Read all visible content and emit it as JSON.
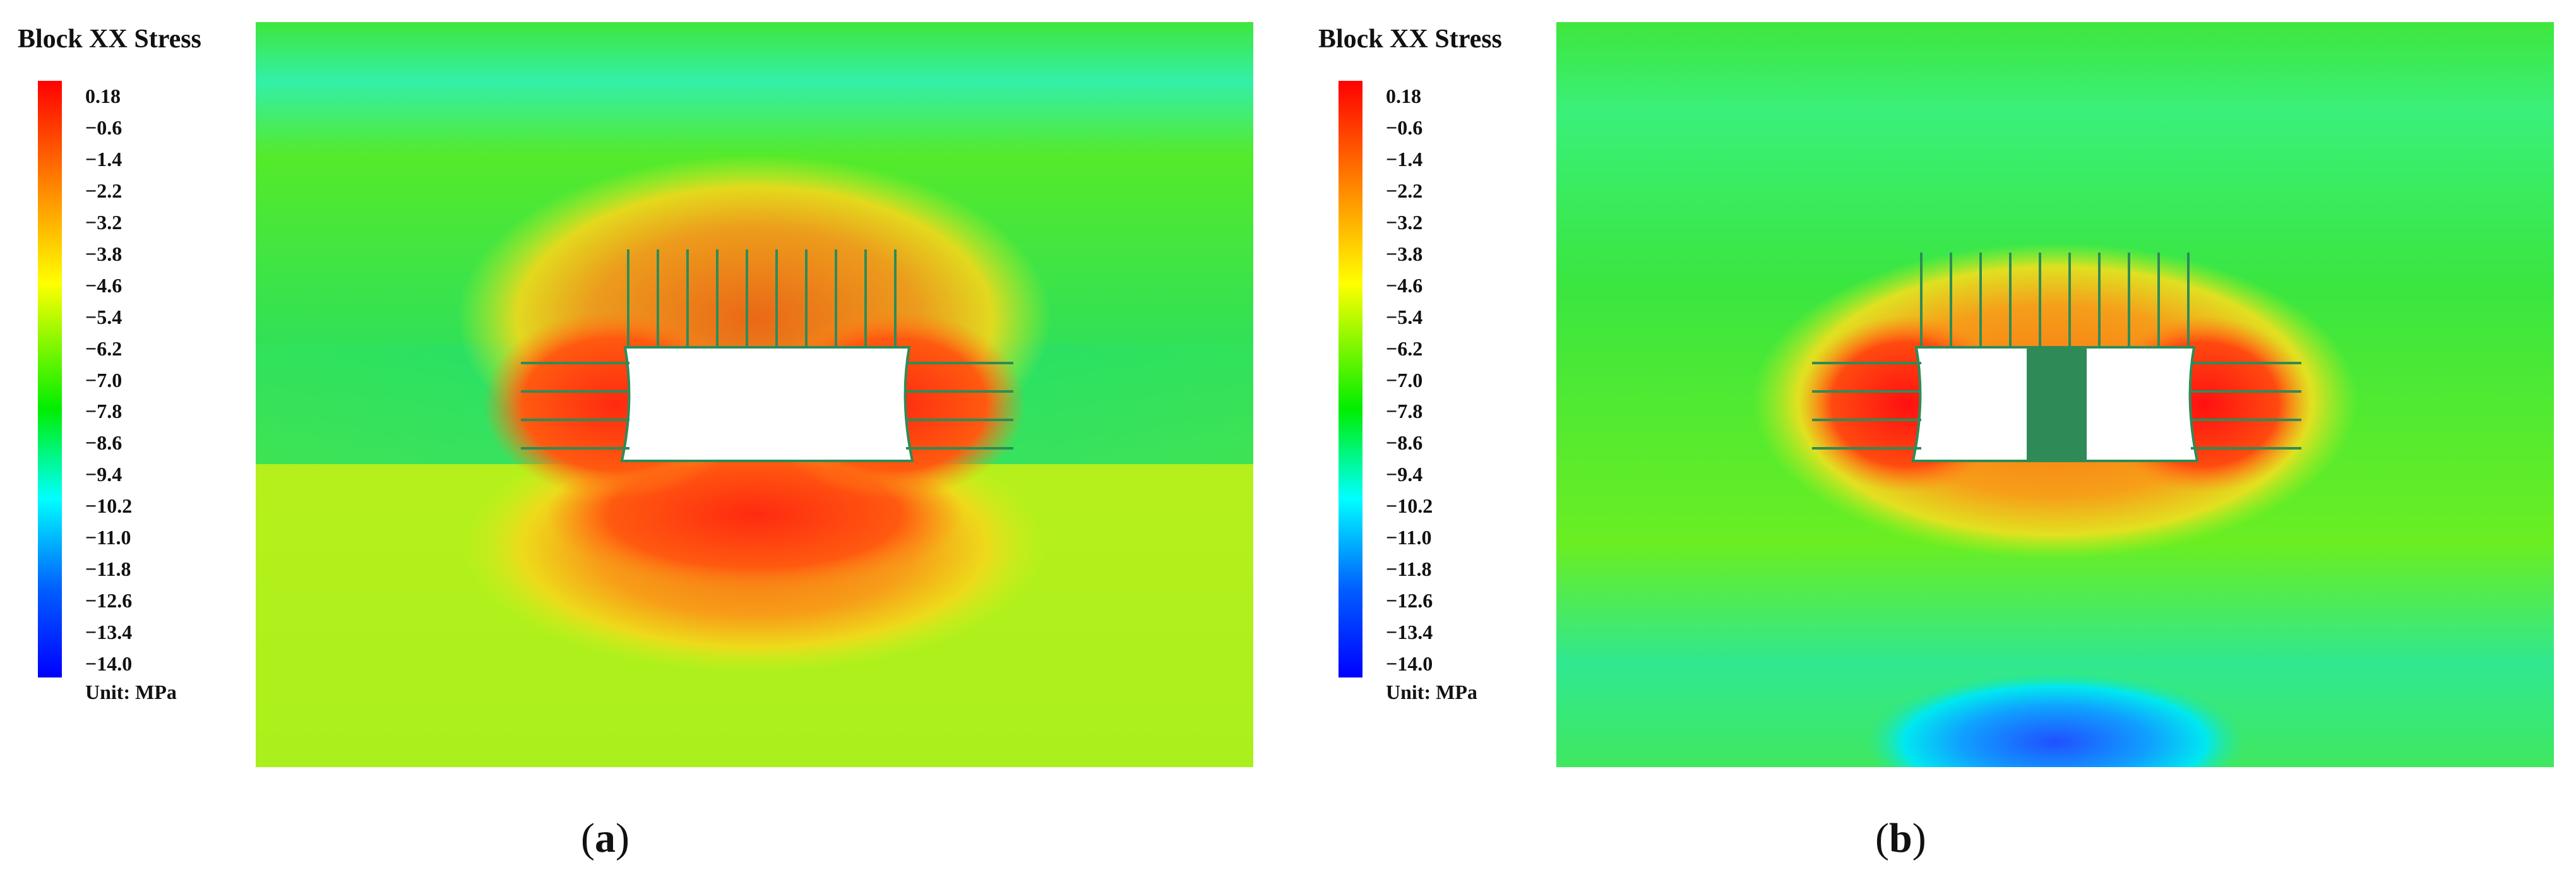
{
  "colors": {
    "red": "#ff0000",
    "orange": "#ff8800",
    "yellow": "#ffff00",
    "green": "#00ee00",
    "cyan": "#00ffff",
    "blue": "#0000ff",
    "opening": "#ffffff",
    "bolt": "#2e8b57",
    "pillar": "#2e8b57"
  },
  "panels": [
    {
      "legend_title": "Block XX Stress",
      "ticks": [
        "0.18",
        "−0.6",
        "−1.4",
        "−2.2",
        "−3.2",
        "−3.8",
        "−4.6",
        "−5.4",
        "−6.2",
        "−7.0",
        "−7.8",
        "−8.6",
        "−9.4",
        "−10.2",
        "−11.0",
        "−11.8",
        "−12.6",
        "−13.4",
        "−14.0"
      ],
      "unit": "Unit: MPa",
      "caption_open": "(",
      "caption_letter": "a",
      "caption_close": ")"
    },
    {
      "legend_title": "Block XX Stress",
      "ticks": [
        "0.18",
        "−0.6",
        "−1.4",
        "−2.2",
        "−3.2",
        "−3.8",
        "−4.6",
        "−5.4",
        "−6.2",
        "−7.0",
        "−7.8",
        "−8.6",
        "−9.4",
        "−10.2",
        "−11.0",
        "−11.8",
        "−12.6",
        "−13.4",
        "−14.0"
      ],
      "unit": "Unit: MPa",
      "caption_open": "(",
      "caption_letter": "b",
      "caption_close": ")"
    }
  ]
}
